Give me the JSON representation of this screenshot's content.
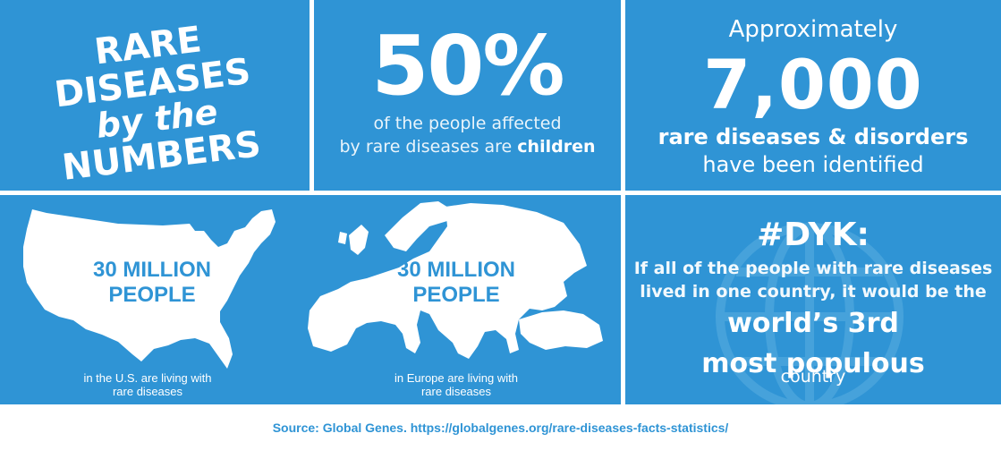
{
  "title": {
    "line1": "RARE DISEASES",
    "line2": "by the",
    "line3": "NUMBERS"
  },
  "children_stat": {
    "value": "50%",
    "line1": "of the people affected",
    "line2_prefix": "by rare diseases are ",
    "line2_bold": "children"
  },
  "diseases_stat": {
    "prefix": "Approximately",
    "value": "7,000",
    "line1": "rare diseases & disorders",
    "line2": "have been identified"
  },
  "us_stat": {
    "line1": "30 MILLION",
    "line2": "PEOPLE",
    "caption1": "in the U.S. are living with",
    "caption2": "rare diseases"
  },
  "europe_stat": {
    "line1": "30 MILLION",
    "line2": "PEOPLE",
    "caption1": "in Europe are living with",
    "caption2": "rare diseases"
  },
  "dyk": {
    "heading": "#DYK:",
    "body1": "If all of the people with rare diseases",
    "body2": "lived in one country, it would be the",
    "big1": "world’s 3rd",
    "big2": "most populous",
    "end": "country"
  },
  "source": "Source: Global Genes. https://globalgenes.org/rare-diseases-facts-statistics/",
  "colors": {
    "panel": "#2f94d5",
    "text": "#ffffff",
    "source": "#2f94d5"
  },
  "icons": [
    "us-map-icon",
    "europe-map-icon",
    "globe-icon"
  ]
}
